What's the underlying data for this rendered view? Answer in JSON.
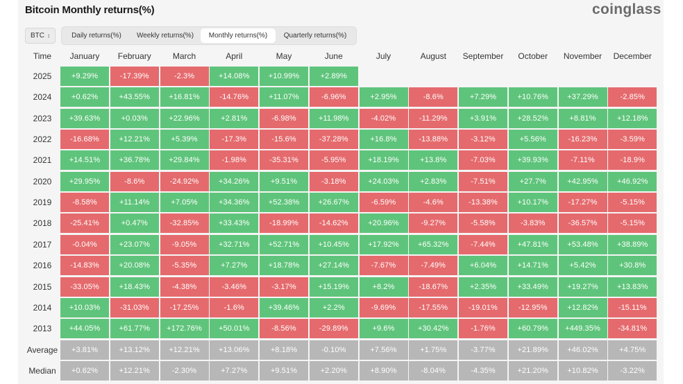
{
  "header": {
    "title": "Bitcoin Monthly returns(%)",
    "logo": "coinglass"
  },
  "controls": {
    "asset": "BTC",
    "tabs": [
      {
        "label": "Daily returns(%)",
        "active": false
      },
      {
        "label": "Weekly returns(%)",
        "active": false
      },
      {
        "label": "Monthly returns(%)",
        "active": true
      },
      {
        "label": "Quarterly returns(%)",
        "active": false
      }
    ]
  },
  "colors": {
    "positive": "#5fc47b",
    "negative": "#e56a6d",
    "summary": "#b7b7b7"
  },
  "chart_data": {
    "type": "table",
    "title": "Bitcoin Monthly returns(%)",
    "row_header_label": "Time",
    "columns": [
      "January",
      "February",
      "March",
      "April",
      "May",
      "June",
      "July",
      "August",
      "September",
      "October",
      "November",
      "December"
    ],
    "rows": [
      {
        "label": "2025",
        "values": [
          "+9.29%",
          "-17.39%",
          "-2.3%",
          "+14.08%",
          "+10.99%",
          "+2.89%",
          "",
          "",
          "",
          "",
          "",
          ""
        ]
      },
      {
        "label": "2024",
        "values": [
          "+0.62%",
          "+43.55%",
          "+16.81%",
          "-14.76%",
          "+11.07%",
          "-6.96%",
          "+2.95%",
          "-8.6%",
          "+7.29%",
          "+10.76%",
          "+37.29%",
          "-2.85%"
        ]
      },
      {
        "label": "2023",
        "values": [
          "+39.63%",
          "+0.03%",
          "+22.96%",
          "+2.81%",
          "-6.98%",
          "+11.98%",
          "-4.02%",
          "-11.29%",
          "+3.91%",
          "+28.52%",
          "+8.81%",
          "+12.18%"
        ]
      },
      {
        "label": "2022",
        "values": [
          "-16.68%",
          "+12.21%",
          "+5.39%",
          "-17.3%",
          "-15.6%",
          "-37.28%",
          "+16.8%",
          "-13.88%",
          "-3.12%",
          "+5.56%",
          "-16.23%",
          "-3.59%"
        ]
      },
      {
        "label": "2021",
        "values": [
          "+14.51%",
          "+36.78%",
          "+29.84%",
          "-1.98%",
          "-35.31%",
          "-5.95%",
          "+18.19%",
          "+13.8%",
          "-7.03%",
          "+39.93%",
          "-7.11%",
          "-18.9%"
        ]
      },
      {
        "label": "2020",
        "values": [
          "+29.95%",
          "-8.6%",
          "-24.92%",
          "+34.26%",
          "+9.51%",
          "-3.18%",
          "+24.03%",
          "+2.83%",
          "-7.51%",
          "+27.7%",
          "+42.95%",
          "+46.92%"
        ]
      },
      {
        "label": "2019",
        "values": [
          "-8.58%",
          "+11.14%",
          "+7.05%",
          "+34.36%",
          "+52.38%",
          "+26.67%",
          "-6.59%",
          "-4.6%",
          "-13.38%",
          "+10.17%",
          "-17.27%",
          "-5.15%"
        ]
      },
      {
        "label": "2018",
        "values": [
          "-25.41%",
          "+0.47%",
          "-32.85%",
          "+33.43%",
          "-18.99%",
          "-14.62%",
          "+20.96%",
          "-9.27%",
          "-5.58%",
          "-3.83%",
          "-36.57%",
          "-5.15%"
        ]
      },
      {
        "label": "2017",
        "values": [
          "-0.04%",
          "+23.07%",
          "-9.05%",
          "+32.71%",
          "+52.71%",
          "+10.45%",
          "+17.92%",
          "+65.32%",
          "-7.44%",
          "+47.81%",
          "+53.48%",
          "+38.89%"
        ]
      },
      {
        "label": "2016",
        "values": [
          "-14.83%",
          "+20.08%",
          "-5.35%",
          "+7.27%",
          "+18.78%",
          "+27.14%",
          "-7.67%",
          "-7.49%",
          "+6.04%",
          "+14.71%",
          "+5.42%",
          "+30.8%"
        ]
      },
      {
        "label": "2015",
        "values": [
          "-33.05%",
          "+18.43%",
          "-4.38%",
          "-3.46%",
          "-3.17%",
          "+15.19%",
          "+8.2%",
          "-18.67%",
          "+2.35%",
          "+33.49%",
          "+19.27%",
          "+13.83%"
        ]
      },
      {
        "label": "2014",
        "values": [
          "+10.03%",
          "-31.03%",
          "-17.25%",
          "-1.6%",
          "+39.46%",
          "+2.2%",
          "-9.69%",
          "-17.55%",
          "-19.01%",
          "-12.95%",
          "+12.82%",
          "-15.11%"
        ]
      },
      {
        "label": "2013",
        "values": [
          "+44.05%",
          "+61.77%",
          "+172.76%",
          "+50.01%",
          "-8.56%",
          "-29.89%",
          "+9.6%",
          "+30.42%",
          "-1.76%",
          "+60.79%",
          "+449.35%",
          "-34.81%"
        ]
      }
    ],
    "summary_rows": [
      {
        "label": "Average",
        "values": [
          "+3.81%",
          "+13.12%",
          "+12.21%",
          "+13.06%",
          "+8.18%",
          "-0.10%",
          "+7.56%",
          "+1.75%",
          "-3.77%",
          "+21.89%",
          "+46.02%",
          "+4.75%"
        ]
      },
      {
        "label": "Median",
        "values": [
          "+0.62%",
          "+12.21%",
          "-2.30%",
          "+7.27%",
          "+9.51%",
          "+2.20%",
          "+8.90%",
          "-8.04%",
          "-4.35%",
          "+21.20%",
          "+10.82%",
          "-3.22%"
        ]
      }
    ]
  }
}
